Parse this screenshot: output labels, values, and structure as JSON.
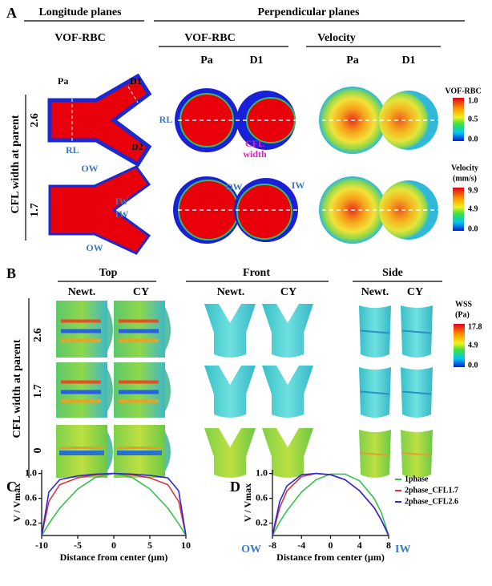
{
  "panel_a": {
    "label": "A",
    "longitude_header": "Longitude planes",
    "perpendicular_header": "Perpendicular planes",
    "longitude_sub": "VOF-RBC",
    "vof_header": "VOF-RBC",
    "velocity_header": "Velocity",
    "columns": [
      "Pa",
      "D1",
      "Pa",
      "D1"
    ],
    "row_title": "CFL width at parent",
    "rows": [
      "2.6",
      "1.7"
    ],
    "annotations": [
      "Pa",
      "D1",
      "D2",
      "RL",
      "RL",
      "CFL",
      "width",
      "OW",
      "IW",
      "IW",
      "OW",
      "OW",
      "IW"
    ],
    "colorbars": [
      {
        "title": "VOF-RBC",
        "ticks": [
          "1.0",
          "0.5",
          "0.0"
        ]
      },
      {
        "title": "Velocity",
        "unit": "(mm/s)",
        "ticks": [
          "9.9",
          "4.9",
          "0.0"
        ]
      }
    ]
  },
  "panel_b": {
    "label": "B",
    "views": [
      "Top",
      "Front",
      "Side"
    ],
    "models": [
      "Newt.",
      "CY",
      "Newt.",
      "CY",
      "Newt.",
      "CY"
    ],
    "row_title": "CFL width at parent",
    "rows": [
      "2.6",
      "1.7",
      "0"
    ],
    "colorbar": {
      "title": "WSS",
      "unit": "(Pa)",
      "ticks": [
        "17.8",
        "4.9",
        "0.0"
      ]
    }
  },
  "chart_data": [
    {
      "type": "line",
      "panel_label": "C",
      "xlabel": "Distance from center (μm)",
      "ylabel": "V / Vmax",
      "x": [
        -10,
        -9,
        -7.5,
        -5,
        -2.5,
        0,
        2.5,
        5,
        7.5,
        9,
        10
      ],
      "xlim": [
        -10,
        10
      ],
      "xticks": [
        -10,
        -5,
        0,
        5,
        10
      ],
      "ylim": [
        0,
        1.06
      ],
      "yticks": [
        0.2,
        0.6,
        {
          "value": 1,
          "label": "1.0"
        }
      ],
      "series": [
        {
          "color": "#33c24a",
          "values": [
            0,
            0.19,
            0.44,
            0.75,
            0.94,
            1,
            0.94,
            0.75,
            0.44,
            0.19,
            0
          ]
        },
        {
          "color": "#e0303a",
          "values": [
            0,
            0.55,
            0.82,
            0.93,
            0.98,
            1,
            0.98,
            0.93,
            0.82,
            0.55,
            0
          ]
        },
        {
          "color": "#2a2ad8",
          "values": [
            0,
            0.7,
            0.9,
            0.96,
            0.99,
            1,
            0.99,
            0.97,
            0.93,
            0.72,
            0
          ]
        }
      ]
    },
    {
      "type": "line",
      "panel_label": "D",
      "xlabel": "Distance from center (μm)",
      "ylabel": "V / Vmax",
      "x": [
        -8,
        -7,
        -6,
        -4,
        -2,
        0,
        2,
        4,
        6,
        7,
        8
      ],
      "xlim": [
        -8,
        8
      ],
      "xticks": [
        -8,
        -4,
        0,
        4,
        8
      ],
      "ylim": [
        0,
        1.06
      ],
      "yticks": [
        0.2,
        0.6,
        {
          "value": 1,
          "label": "1.0"
        }
      ],
      "annotations": [
        "OW",
        "IW"
      ],
      "legend": "right",
      "series": [
        {
          "name": "1phase",
          "color": "#33c24a",
          "values": [
            0,
            0.22,
            0.4,
            0.7,
            0.9,
            0.99,
            0.99,
            0.88,
            0.6,
            0.37,
            0
          ]
        },
        {
          "name": "2phase_CFL1.7",
          "color": "#e0303a",
          "values": [
            0,
            0.45,
            0.72,
            0.95,
            1,
            0.98,
            0.9,
            0.72,
            0.45,
            0.25,
            0
          ]
        },
        {
          "name": "2phase_CFL2.6",
          "color": "#2a2ad8",
          "values": [
            0,
            0.55,
            0.8,
            0.98,
            1,
            0.98,
            0.9,
            0.72,
            0.45,
            0.25,
            0
          ]
        }
      ]
    }
  ]
}
